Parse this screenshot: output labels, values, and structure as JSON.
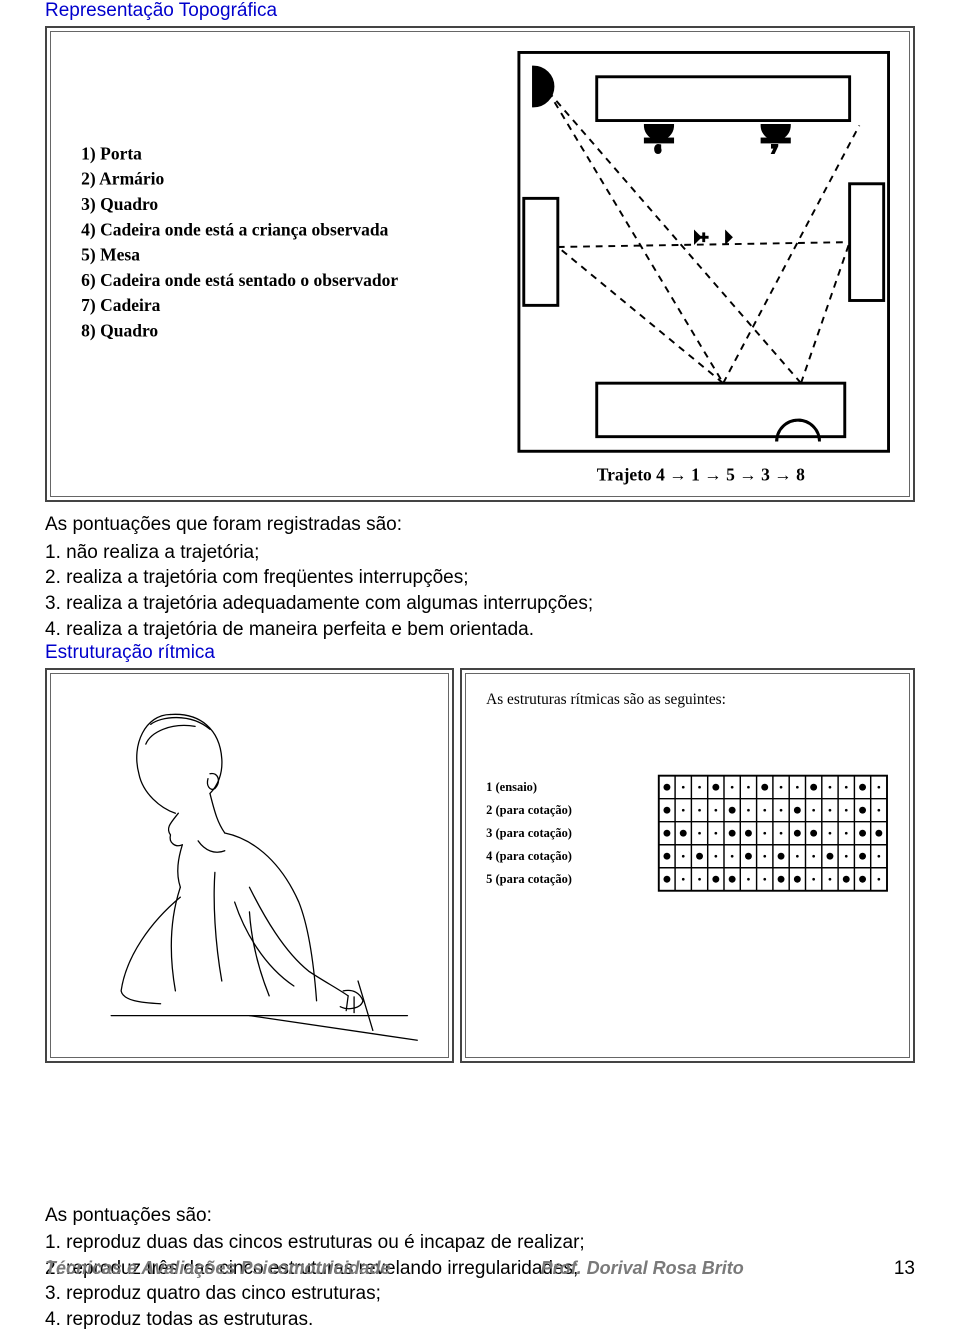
{
  "headings": {
    "topografica": "Representação Topográfica",
    "ritmica": "Estruturação rítmica"
  },
  "topografica_diagram": {
    "legend_items": [
      "1) Porta",
      "2) Armário",
      "3) Quadro",
      "4) Cadeira onde está a criança observada",
      "5) Mesa",
      "6) Cadeira onde está sentado o observador",
      "7) Cadeira",
      "8) Quadro"
    ],
    "trajectory_label": "Trajeto 4 → 1 → 5 → 3 → 8",
    "legend_font_size": 11,
    "legend_font_family": "Times New Roman",
    "legend_bold": true,
    "room_stroke": "#000000",
    "room_stroke_width": 2,
    "dashed_line_dash": "6 5",
    "background": "#ffffff"
  },
  "scoring_topografica": {
    "intro": "As pontuações que foram registradas são:",
    "items": [
      "1. não realiza a trajetória;",
      "2. realiza a trajetória com freqüentes interrupções;",
      "3. realiza a trajetória adequadamente com algumas interrupções;",
      "4. realiza a trajetória de maneira perfeita e bem orientada."
    ]
  },
  "ritmica_left": {
    "description": "Line drawing of a child writing at a desk",
    "stroke": "#000000",
    "stroke_width": 1.1,
    "background": "#ffffff"
  },
  "ritmica_right": {
    "title": "As estruturas rítmicas são as seguintes:",
    "labels": [
      "1 (ensaio)",
      "2 (para cotação)",
      "3 (para cotação)",
      "4 (para cotação)",
      "5 (para cotação)"
    ],
    "rows": [
      [
        1,
        0,
        0,
        1,
        0,
        0,
        1,
        0,
        0,
        1,
        0,
        0,
        1,
        0
      ],
      [
        1,
        0,
        0,
        0,
        1,
        0,
        0,
        0,
        1,
        0,
        0,
        0,
        1,
        0
      ],
      [
        1,
        1,
        0,
        0,
        1,
        1,
        0,
        0,
        1,
        1,
        0,
        0,
        1,
        1
      ],
      [
        1,
        0,
        1,
        0,
        0,
        1,
        0,
        1,
        0,
        0,
        1,
        0,
        1,
        0
      ],
      [
        1,
        0,
        0,
        1,
        1,
        0,
        0,
        1,
        1,
        0,
        0,
        1,
        1,
        0
      ]
    ],
    "big_radius": 3.6,
    "small_radius": 1.4,
    "grid_stroke": "#000000",
    "font_family": "Times New Roman",
    "title_bold": true,
    "label_bold": true,
    "background": "#ffffff"
  },
  "scoring_ritmica": {
    "intro": "As pontuações são:",
    "items": [
      "1. reproduz duas das cincos estruturas ou é incapaz de realizar;",
      "2. reproduz três das cinco estruturas revelando irregularidades;",
      "3. reproduz quatro das cinco estruturas;",
      "4. reproduz todas as estruturas."
    ]
  },
  "footer": {
    "left": "Técnicas e Avaliações Psicomotricidade",
    "center": "Prof. Dorival Rosa Brito",
    "page": "13"
  }
}
